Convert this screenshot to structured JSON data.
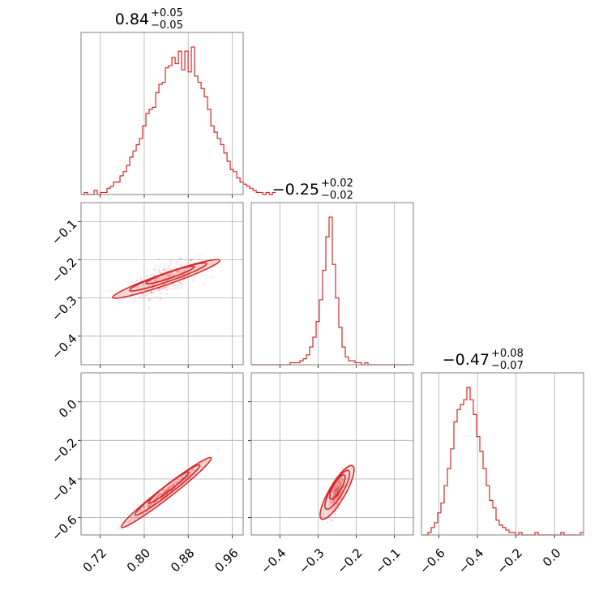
{
  "colors": {
    "series": "#d62728",
    "grid": "#b0b0b0",
    "frame": "#808080"
  },
  "chart_data": {
    "type": "corner",
    "parameters": [
      {
        "index": 0,
        "median": 0.84,
        "plus": 0.05,
        "minus": 0.05,
        "title_main": "0.84",
        "title_plus": "+0.05",
        "title_minus": "−0.05",
        "range": [
          0.685,
          0.98
        ]
      },
      {
        "index": 1,
        "median": -0.25,
        "plus": 0.02,
        "minus": 0.02,
        "title_main": "−0.25",
        "title_plus": "+0.02",
        "title_minus": "−0.02",
        "range": [
          -0.475,
          -0.05
        ]
      },
      {
        "index": 2,
        "median": -0.47,
        "plus": 0.08,
        "minus": 0.07,
        "title_main": "−0.47",
        "title_plus": "+0.08",
        "title_minus": "−0.07",
        "range": [
          -0.69,
          0.15
        ]
      }
    ],
    "ticks": {
      "p0": {
        "values": [
          0.72,
          0.8,
          0.88,
          0.96
        ],
        "labels": [
          "0.72",
          "0.80",
          "0.88",
          "0.96"
        ]
      },
      "p1": {
        "values": [
          -0.4,
          -0.3,
          -0.2,
          -0.1
        ],
        "labels": [
          "−0.4",
          "−0.3",
          "−0.2",
          "−0.1"
        ]
      },
      "p2": {
        "values": [
          -0.6,
          -0.4,
          -0.2,
          0.0
        ],
        "labels": [
          "−0.6",
          "−0.4",
          "−0.2",
          "0.0"
        ]
      }
    },
    "histograms": {
      "p0": {
        "edges_start": 0.685,
        "bin_width": 0.005904,
        "counts": [
          0,
          1,
          0,
          0,
          2,
          0,
          1,
          1,
          3,
          4,
          6,
          6,
          9,
          11,
          14,
          18,
          21,
          24,
          27,
          33,
          39,
          41,
          42,
          49,
          53,
          54,
          61,
          62,
          66,
          63,
          69,
          60,
          69,
          59,
          71,
          57,
          54,
          51,
          47,
          41,
          33,
          30,
          27,
          24,
          20,
          16,
          12,
          11,
          8,
          6,
          5,
          4,
          3,
          2,
          1,
          1,
          0,
          1,
          0,
          1
        ]
      },
      "p1": {
        "edges_start": -0.475,
        "bin_width": 0.0085,
        "counts": [
          0,
          0,
          0,
          0,
          0,
          0,
          0,
          0,
          0,
          0,
          0,
          0,
          1,
          1,
          1,
          2,
          3,
          5,
          9,
          14,
          22,
          33,
          48,
          65,
          75,
          51,
          34,
          19,
          9,
          4,
          2,
          2,
          1,
          1,
          0,
          1,
          0,
          0,
          0,
          0,
          0,
          0,
          0,
          0,
          0,
          0,
          0,
          0,
          0,
          0
        ]
      },
      "p2": {
        "edges_start": -0.69,
        "bin_width": 0.0168,
        "counts": [
          0,
          0,
          1,
          3,
          5,
          9,
          13,
          20,
          27,
          35,
          46,
          51,
          53,
          55,
          60,
          55,
          49,
          40,
          34,
          27,
          20,
          14,
          11,
          6,
          4,
          3,
          2,
          1,
          1,
          0,
          1,
          0,
          0,
          0,
          0,
          1,
          0,
          0,
          0,
          0,
          0,
          0,
          0,
          1,
          0,
          0,
          0,
          0,
          0,
          1
        ]
      }
    },
    "scatter": {
      "p1_vs_p0": {
        "slope": 0.5,
        "anchor": [
          0.84,
          -0.25
        ],
        "spread": 0.018
      },
      "p2_vs_p0": {
        "slope": 2.2,
        "anchor": [
          0.84,
          -0.47
        ],
        "spread": 0.012
      },
      "p2_vs_p1": {
        "slope": 3.4,
        "anchor": [
          -0.25,
          -0.47
        ],
        "spread": 0.03
      }
    },
    "grid": true
  }
}
